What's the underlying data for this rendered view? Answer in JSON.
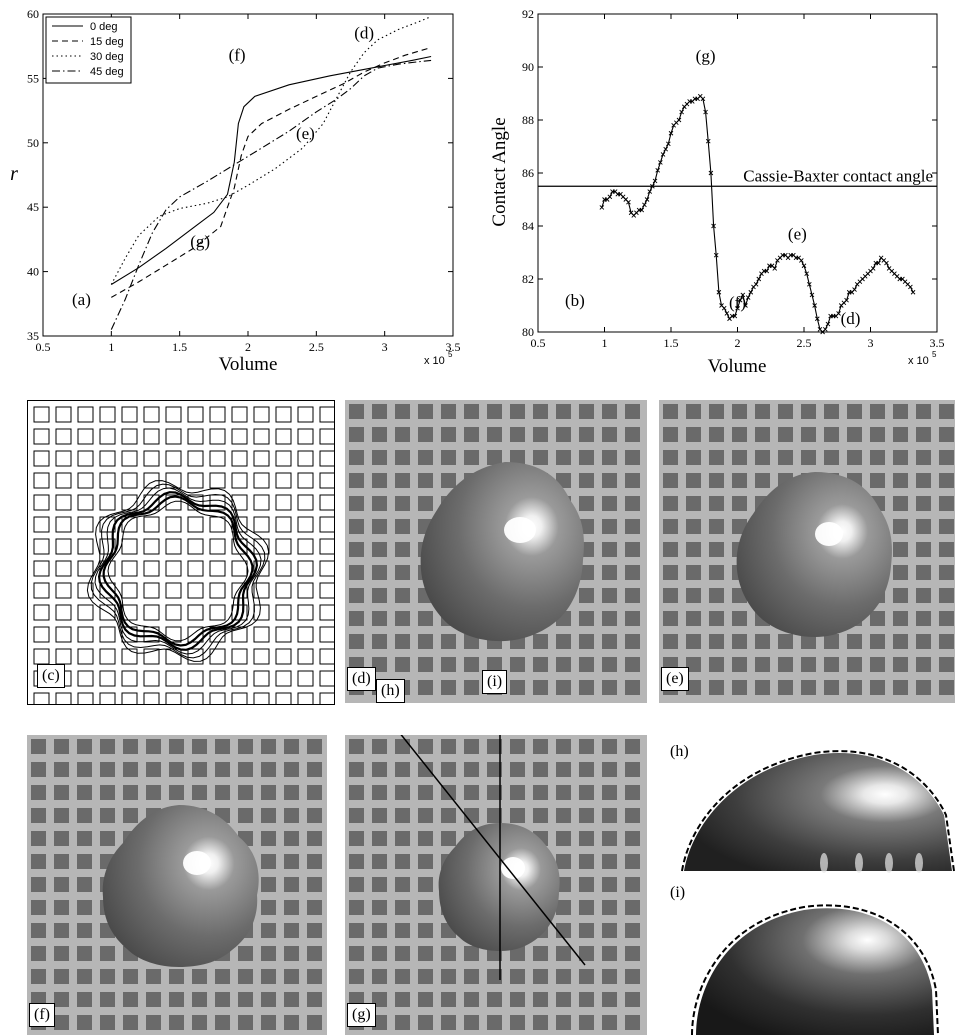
{
  "chart_data": [
    {
      "type": "line",
      "panel_label": "(a)",
      "xlabel": "Volume",
      "ylabel": "r",
      "x_multiplier": "x 10",
      "x_exponent": "5",
      "xlim": [
        0.5,
        3.5
      ],
      "ylim": [
        35,
        60
      ],
      "xticks": [
        "0.5",
        "1",
        "1.5",
        "2",
        "2.5",
        "3",
        "3.5"
      ],
      "yticks": [
        "35",
        "40",
        "45",
        "50",
        "55",
        "60"
      ],
      "legend": "top-left",
      "series": [
        {
          "name": "0 deg",
          "style": "solid",
          "x": [
            1.0,
            1.2,
            1.4,
            1.6,
            1.75,
            1.85,
            1.9,
            1.93,
            1.97,
            2.05,
            2.3,
            2.6,
            2.8,
            3.0,
            3.2,
            3.34
          ],
          "y": [
            39.0,
            40.3,
            41.8,
            43.4,
            44.6,
            46.0,
            48.5,
            51.5,
            52.8,
            53.6,
            54.5,
            55.2,
            55.6,
            56.0,
            56.4,
            56.7
          ]
        },
        {
          "name": "15 deg",
          "style": "dashed",
          "x": [
            1.0,
            1.2,
            1.4,
            1.6,
            1.8,
            1.9,
            1.95,
            2.0,
            2.1,
            2.3,
            2.5,
            2.7,
            2.85,
            3.0,
            3.15,
            3.34
          ],
          "y": [
            38.0,
            39.2,
            40.5,
            41.8,
            43.5,
            46.5,
            49.0,
            50.5,
            51.5,
            52.6,
            53.6,
            54.6,
            55.5,
            56.2,
            56.8,
            57.4
          ]
        },
        {
          "name": "30 deg",
          "style": "dotted",
          "x": [
            1.0,
            1.1,
            1.2,
            1.35,
            1.5,
            1.7,
            1.85,
            2.0,
            2.2,
            2.4,
            2.55,
            2.65,
            2.75,
            2.85,
            2.95,
            3.1,
            3.25,
            3.34
          ],
          "y": [
            39.0,
            41.0,
            42.8,
            44.3,
            44.9,
            45.3,
            45.8,
            46.7,
            48.0,
            49.6,
            51.5,
            53.5,
            55.5,
            57.0,
            58.0,
            58.8,
            59.4,
            59.8
          ]
        },
        {
          "name": "45 deg",
          "style": "dashdot",
          "x": [
            1.0,
            1.1,
            1.2,
            1.3,
            1.4,
            1.5,
            1.7,
            1.9,
            2.1,
            2.3,
            2.5,
            2.65,
            2.75,
            2.85,
            2.95,
            3.1,
            3.25,
            3.34
          ],
          "y": [
            35.5,
            37.8,
            40.5,
            43.0,
            44.8,
            45.8,
            47.0,
            48.3,
            49.6,
            50.9,
            52.4,
            53.4,
            54.2,
            55.2,
            55.8,
            56.1,
            56.3,
            56.4
          ]
        }
      ],
      "annotations": [
        {
          "text": "(f)",
          "x": 1.92,
          "y": 56.4
        },
        {
          "text": "(d)",
          "x": 2.85,
          "y": 58.1
        },
        {
          "text": "(e)",
          "x": 2.42,
          "y": 50.3
        },
        {
          "text": "(g)",
          "x": 1.65,
          "y": 41.9
        }
      ]
    },
    {
      "type": "line",
      "panel_label": "(b)",
      "xlabel": "Volume",
      "ylabel": "Contact Angle",
      "x_multiplier": "x 10",
      "x_exponent": "5",
      "xlim": [
        0.5,
        3.5
      ],
      "ylim": [
        80,
        92
      ],
      "xticks": [
        "0.5",
        "1",
        "1.5",
        "2",
        "2.5",
        "3",
        "3.5"
      ],
      "yticks": [
        "80",
        "82",
        "84",
        "86",
        "88",
        "90",
        "92"
      ],
      "reference_line": {
        "label": "Cassie-Baxter contact angle",
        "y": 85.5
      },
      "series": [
        {
          "marker": "x",
          "x": [
            0.98,
            1.0,
            1.02,
            1.04,
            1.06,
            1.08,
            1.1,
            1.12,
            1.14,
            1.16,
            1.18,
            1.2,
            1.22,
            1.24,
            1.26,
            1.28,
            1.3,
            1.32,
            1.34,
            1.36,
            1.38,
            1.4,
            1.42,
            1.44,
            1.46,
            1.48,
            1.5,
            1.52,
            1.54,
            1.56,
            1.58,
            1.6,
            1.62,
            1.64,
            1.66,
            1.68,
            1.7,
            1.72,
            1.74,
            1.76,
            1.78,
            1.8,
            1.82,
            1.84,
            1.86,
            1.88,
            1.9,
            1.92,
            1.94,
            1.96,
            1.98,
            2.0,
            2.02,
            2.04,
            2.06,
            2.08,
            2.1,
            2.12,
            2.14,
            2.16,
            2.18,
            2.2,
            2.22,
            2.24,
            2.26,
            2.28,
            2.3,
            2.32,
            2.34,
            2.36,
            2.38,
            2.4,
            2.42,
            2.44,
            2.46,
            2.48,
            2.5,
            2.52,
            2.54,
            2.56,
            2.58,
            2.6,
            2.62,
            2.64,
            2.66,
            2.68,
            2.7,
            2.72,
            2.74,
            2.76,
            2.78,
            2.8,
            2.82,
            2.84,
            2.86,
            2.88,
            2.9,
            2.92,
            2.94,
            2.96,
            2.98,
            3.0,
            3.02,
            3.04,
            3.06,
            3.08,
            3.1,
            3.12,
            3.14,
            3.16,
            3.18,
            3.2,
            3.22,
            3.24,
            3.26,
            3.28,
            3.3,
            3.32
          ],
          "y": [
            84.7,
            85.0,
            85.0,
            85.1,
            85.3,
            85.3,
            85.2,
            85.2,
            85.1,
            85.0,
            84.9,
            84.5,
            84.4,
            84.5,
            84.6,
            84.6,
            84.8,
            85.0,
            85.3,
            85.5,
            85.7,
            86.1,
            86.4,
            86.7,
            86.9,
            87.1,
            87.5,
            87.8,
            87.9,
            88.0,
            88.3,
            88.5,
            88.6,
            88.7,
            88.7,
            88.8,
            88.8,
            88.9,
            88.8,
            88.3,
            87.2,
            86.0,
            84.0,
            82.9,
            81.5,
            81.0,
            80.9,
            80.7,
            80.5,
            80.6,
            80.6,
            80.9,
            81.2,
            81.4,
            81.0,
            81.3,
            81.5,
            81.7,
            81.8,
            82.0,
            82.2,
            82.3,
            82.3,
            82.5,
            82.5,
            82.4,
            82.7,
            82.8,
            82.9,
            82.9,
            82.8,
            82.9,
            82.9,
            82.8,
            82.8,
            82.7,
            82.5,
            82.2,
            81.8,
            81.4,
            81.0,
            80.5,
            80.1,
            80.0,
            80.1,
            80.3,
            80.6,
            80.6,
            80.6,
            80.7,
            81.0,
            81.1,
            81.2,
            81.5,
            81.5,
            81.6,
            81.8,
            81.9,
            82.0,
            82.1,
            82.2,
            82.3,
            82.4,
            82.6,
            82.6,
            82.8,
            82.7,
            82.6,
            82.4,
            82.3,
            82.2,
            82.1,
            82.0,
            82.0,
            81.9,
            81.8,
            81.7,
            81.5
          ]
        }
      ],
      "annotations": [
        {
          "text": "(g)",
          "x": 1.76,
          "y": 90.2
        },
        {
          "text": "(e)",
          "x": 2.45,
          "y": 83.5
        },
        {
          "text": "(f)",
          "x": 2.0,
          "y": 80.9
        },
        {
          "text": "(d)",
          "x": 2.85,
          "y": 80.3
        }
      ]
    }
  ],
  "panels": {
    "c": "(c)",
    "d": "(d)",
    "e": "(e)",
    "f": "(f)",
    "g": "(g)",
    "g_line_h": "(h)",
    "g_line_i": "(i)",
    "h": "(h)",
    "i": "(i)"
  }
}
